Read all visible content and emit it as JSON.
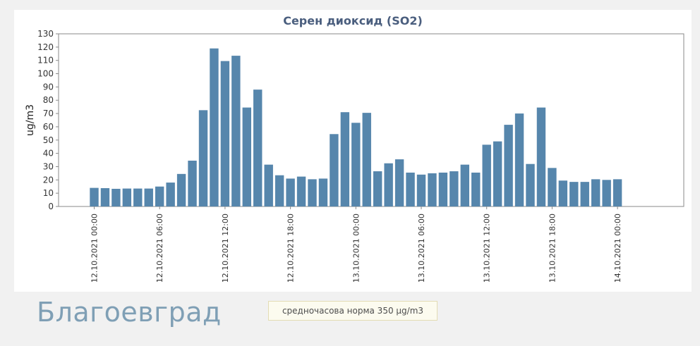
{
  "chart_data": {
    "type": "bar",
    "title": "Серен диоксид (SO2)",
    "ylabel": "ug/m3",
    "xlabel": "",
    "ylim": [
      0,
      130
    ],
    "yticks": [
      0,
      10,
      20,
      30,
      40,
      50,
      60,
      70,
      80,
      90,
      100,
      110,
      120,
      130
    ],
    "x_tick_labels": [
      {
        "index": 0,
        "label": "12.10.2021 00:00"
      },
      {
        "index": 6,
        "label": "12.10.2021 06:00"
      },
      {
        "index": 12,
        "label": "12.10.2021 12:00"
      },
      {
        "index": 18,
        "label": "12.10.2021 18:00"
      },
      {
        "index": 24,
        "label": "13.10.2021 00:00"
      },
      {
        "index": 30,
        "label": "13.10.2021 06:00"
      },
      {
        "index": 36,
        "label": "13.10.2021 12:00"
      },
      {
        "index": 42,
        "label": "13.10.2021 18:00"
      },
      {
        "index": 48,
        "label": "14.10.2021 00:00"
      }
    ],
    "bar_color": "#5686ac",
    "grid": false,
    "values": [
      14,
      13.8,
      13.3,
      13.5,
      13.5,
      13.5,
      15,
      18,
      24.5,
      34.5,
      72.5,
      119,
      109.5,
      113.5,
      74.5,
      88,
      31.5,
      23.5,
      21,
      22.5,
      20.5,
      21,
      54.5,
      71,
      63,
      70.5,
      26.5,
      32.5,
      35.5,
      25.5,
      24,
      25,
      25.5,
      26.5,
      31.5,
      25.5,
      46.5,
      49,
      61.5,
      70,
      32,
      74.5,
      29,
      19.5,
      18.5,
      18.5,
      20.5,
      20,
      20.5
    ]
  },
  "city_name": "Благоевград",
  "norm_label": "средночасова норма 350 µg/m3"
}
